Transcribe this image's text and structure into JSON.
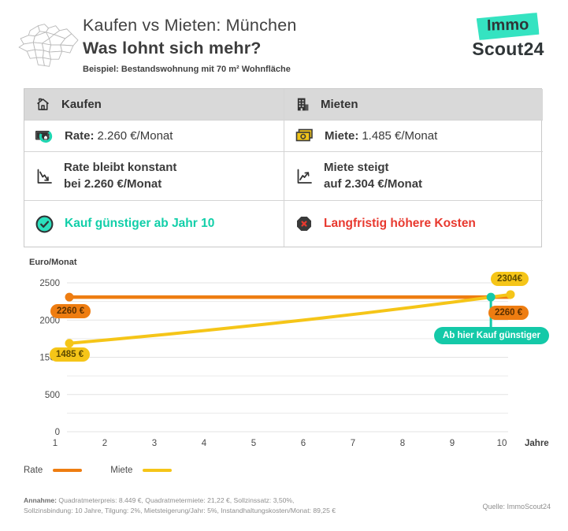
{
  "header": {
    "title_line1": "Kaufen vs Mieten: München",
    "title_line2": "Was lohnt sich mehr?",
    "subtitle": "Beispiel: Bestandswohnung mit 70 m² Wohnfläche",
    "logo": {
      "immo": "Immo",
      "scout": "Scout24"
    }
  },
  "colors": {
    "teal": "#14c9a8",
    "logo_teal": "#35e3c1",
    "orange": "#ee7d11",
    "yellow": "#f5c518",
    "red": "#e8392f"
  },
  "comparison_table": {
    "col_kaufen_header": "Kaufen",
    "col_mieten_header": "Mieten",
    "rate_label": "Rate:",
    "rate_value": "2.260 €/Monat",
    "miete_label": "Miete:",
    "miete_value": "1.485 €/Monat",
    "kaufen_line1": "Rate bleibt konstant",
    "kaufen_line2": "bei 2.260 €/Monat",
    "mieten_line1": "Miete steigt",
    "mieten_line2": "auf 2.304 €/Monat",
    "kaufen_verdict": "Kauf günstiger ab Jahr 10",
    "mieten_verdict": "Langfristig höhere Kosten"
  },
  "chart_data": {
    "type": "line",
    "title": "Euro/Monat",
    "ylabel": "Euro/Monat",
    "xlabel": "Jahre",
    "x": [
      1,
      2,
      3,
      4,
      5,
      6,
      7,
      8,
      9,
      10
    ],
    "ylim": [
      0,
      2500
    ],
    "ytick_labels": [
      "2500",
      "2000",
      "1500",
      "500",
      "0"
    ],
    "grid": true,
    "legend_position": "bottom-left",
    "marker_color": "#14c9a8",
    "series": [
      {
        "name": "Rate",
        "color": "#ee7d11",
        "values": [
          2260,
          2260,
          2260,
          2260,
          2260,
          2260,
          2260,
          2260,
          2260,
          2260
        ]
      },
      {
        "name": "Miete",
        "color": "#f5c518",
        "values": [
          1485,
          1559,
          1637,
          1719,
          1805,
          1895,
          1990,
          2090,
          2194,
          2304
        ]
      }
    ],
    "annotations": {
      "rate_start": "2260 €",
      "miete_start": "1485 €",
      "miete_end": "2304€",
      "rate_end": "2260 €",
      "marker_label": "Ab hier Kauf günstiger"
    }
  },
  "footer": {
    "annahme_label": "Annahme:",
    "line1": "Quadratmeterpreis: 8.449 €, Quadratmetermiete: 21,22 €,  Sollzinssatz: 3,50%,",
    "line2": "Sollzinsbindung: 10 Jahre, Tilgung: 2%, Mietsteigerung/Jahr: 5%, Instandhaltungskosten/Monat: 89,25 €",
    "quelle": "Quelle: ImmoScout24"
  }
}
